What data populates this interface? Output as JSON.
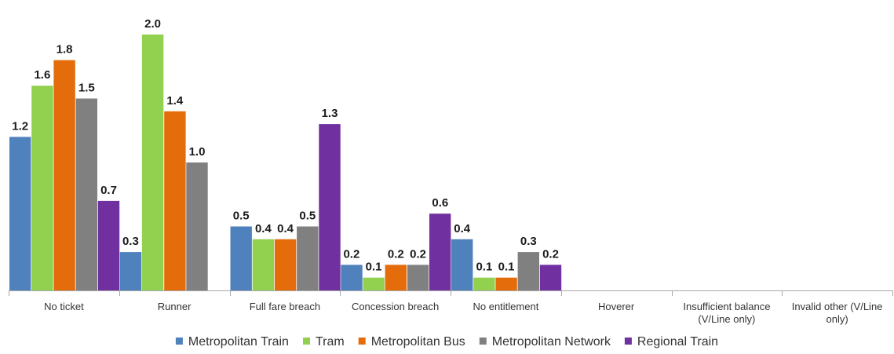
{
  "chart_data": {
    "type": "bar",
    "categories": [
      [
        "No ticket"
      ],
      [
        "Runner"
      ],
      [
        "Full fare breach"
      ],
      [
        "Concession breach"
      ],
      [
        "No entitlement"
      ],
      [
        "Hoverer"
      ],
      [
        "Insufficient balance",
        "(V/Line only)"
      ],
      [
        "Invalid other (V/Line",
        "only)"
      ]
    ],
    "series": [
      {
        "name": "Metropolitan Train",
        "color": "#4F81BD",
        "values": [
          1.2,
          0.3,
          0.5,
          0.2,
          0.4,
          null,
          null,
          null
        ]
      },
      {
        "name": "Tram",
        "color": "#92D050",
        "values": [
          1.6,
          2.0,
          0.4,
          0.1,
          0.1,
          null,
          null,
          null
        ]
      },
      {
        "name": "Metropolitan Bus",
        "color": "#E46C0A",
        "values": [
          1.8,
          1.4,
          0.4,
          0.2,
          0.1,
          null,
          null,
          null
        ]
      },
      {
        "name": "Metropolitan Network",
        "color": "#808080",
        "values": [
          1.5,
          1.0,
          0.5,
          0.2,
          0.3,
          null,
          null,
          null
        ]
      },
      {
        "name": "Regional Train",
        "color": "#7030A0",
        "values": [
          0.7,
          null,
          1.3,
          0.6,
          0.2,
          null,
          null,
          null
        ]
      }
    ],
    "ylim": [
      0,
      2.0
    ],
    "grid": false,
    "legend_position": "bottom",
    "title": "",
    "xlabel": "",
    "ylabel": ""
  }
}
